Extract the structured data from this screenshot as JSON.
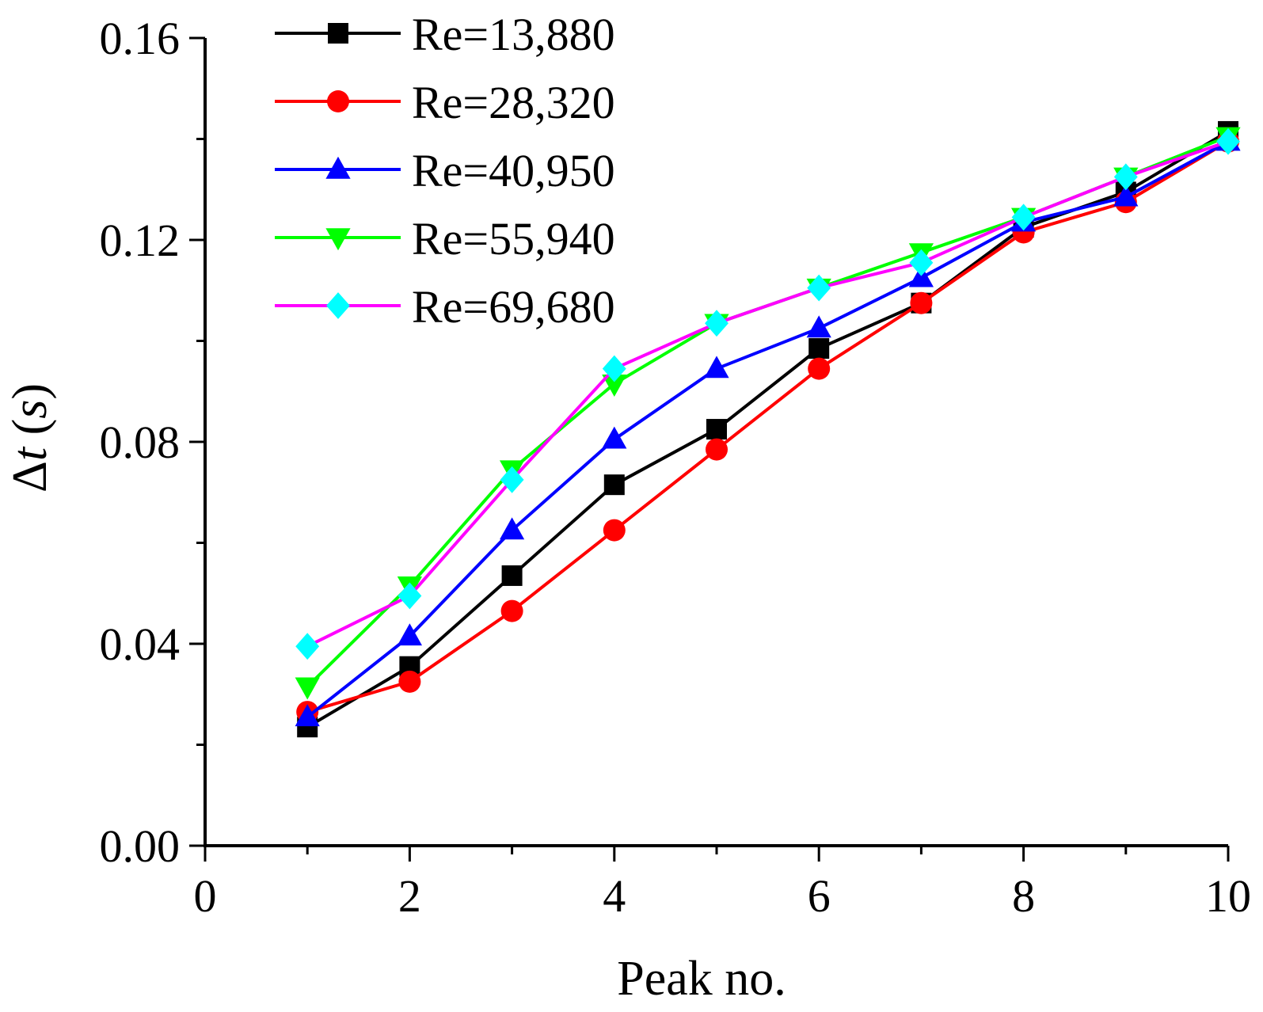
{
  "chart_data": {
    "type": "line",
    "title": "",
    "xlabel": "Peak no.",
    "ylabel_symbol": "Δ",
    "ylabel_var": "t",
    "ylabel_unit_open": " (",
    "ylabel_unit": "s",
    "ylabel_unit_close": ")",
    "xlim": [
      0,
      10
    ],
    "ylim": [
      0,
      0.16
    ],
    "xticks": [
      0,
      2,
      4,
      6,
      8,
      10
    ],
    "xtick_labels": [
      "0",
      "2",
      "4",
      "6",
      "8",
      "10"
    ],
    "yticks": [
      0,
      0.04,
      0.08,
      0.12,
      0.16
    ],
    "ytick_labels": [
      "0.00",
      "0.04",
      "0.08",
      "0.12",
      "0.16"
    ],
    "grid": false,
    "legend_position": "top-left",
    "x": [
      1,
      2,
      3,
      4,
      5,
      6,
      7,
      8,
      9,
      10
    ],
    "series": [
      {
        "name": "Re=13,880",
        "color": "#000000",
        "marker": "square",
        "values": [
          0.0235,
          0.0355,
          0.0535,
          0.0715,
          0.0825,
          0.0985,
          0.1075,
          0.1225,
          0.1295,
          0.1415
        ]
      },
      {
        "name": "Re=28,320",
        "color": "#ff0000",
        "marker": "circle",
        "values": [
          0.0265,
          0.0325,
          0.0465,
          0.0625,
          0.0785,
          0.0945,
          0.1075,
          0.1215,
          0.1275,
          0.1395
        ]
      },
      {
        "name": "Re=40,950",
        "color": "#0000ff",
        "marker": "triangle-up",
        "values": [
          0.0255,
          0.0415,
          0.0625,
          0.0805,
          0.0945,
          0.1025,
          0.1125,
          0.1235,
          0.1285,
          0.1395
        ]
      },
      {
        "name": "Re=55,940",
        "color": "#00ff00",
        "marker": "triangle-down",
        "values": [
          0.0315,
          0.0515,
          0.0745,
          0.0915,
          0.1035,
          0.1105,
          0.1175,
          0.1245,
          0.1325,
          0.1405
        ]
      },
      {
        "name": "Re=69,680",
        "color": "#ff00ff",
        "marker": "diamond",
        "marker_color": "#00ffff",
        "values": [
          0.0395,
          0.0495,
          0.0725,
          0.0945,
          0.1035,
          0.1105,
          0.1155,
          0.1245,
          0.1325,
          0.1395
        ]
      }
    ]
  }
}
